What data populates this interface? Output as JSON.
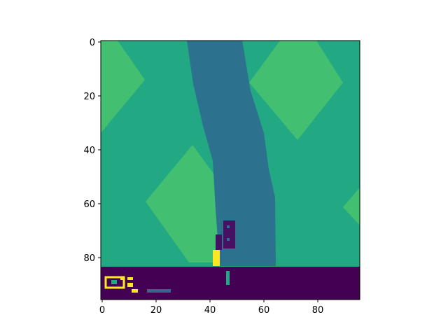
{
  "figure": {
    "type": "image-plot",
    "observation": "car-racing game frame",
    "image_size": [
      96,
      96
    ],
    "x_ticks": [
      "0",
      "20",
      "40",
      "60",
      "80"
    ],
    "y_ticks": [
      "0",
      "20",
      "40",
      "60",
      "80"
    ]
  },
  "palette": {
    "background_green": "#23a884",
    "grass_light": "#43bf71",
    "road": "#2c728e",
    "hud_bar": "#440154",
    "car": "#471063",
    "indicator_yellow": "#fde725",
    "indicator_teal": "#22a884",
    "indicator_blue": "#31688e"
  },
  "scene": {
    "grass_patches": 4,
    "road": "curving vertical track",
    "car": "top-down race car near bottom of track",
    "hud": "status bar with score digits, speed bar and gauges"
  }
}
